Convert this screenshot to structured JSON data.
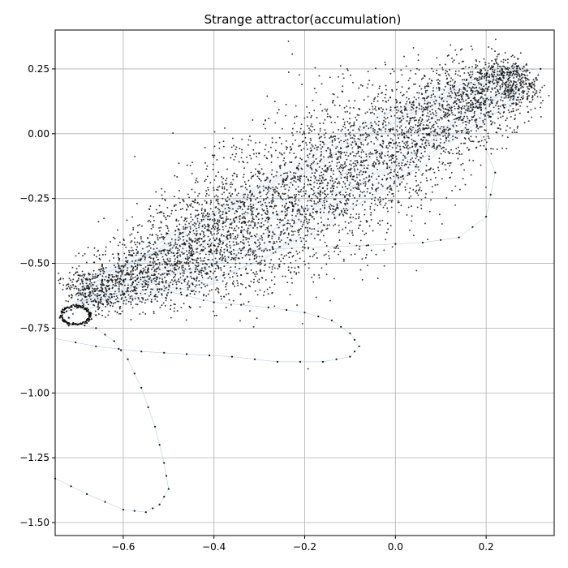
{
  "chart_data": {
    "type": "scatter",
    "title": "Strange attractor(accumulation)",
    "xlabel": "",
    "ylabel": "",
    "xlim": [
      -0.75,
      0.35
    ],
    "ylim": [
      -1.55,
      0.4
    ],
    "grid": true,
    "x_ticks": [
      -0.6,
      -0.4,
      -0.2,
      0.0,
      0.2
    ],
    "x_tick_labels": [
      "−0.6",
      "−0.4",
      "−0.2",
      "0.0",
      "0.2"
    ],
    "y_ticks": [
      0.25,
      0.0,
      -0.25,
      -0.5,
      -0.75,
      -1.0,
      -1.25,
      -1.5
    ],
    "y_tick_labels": [
      "0.25",
      "0.00",
      "−0.25",
      "−0.50",
      "−0.75",
      "−1.00",
      "−1.25",
      "−1.50"
    ],
    "colors": {
      "points": "#111111",
      "trajectory": "#a9c4de",
      "grid": "#b0b0b0",
      "axes": "#000000"
    },
    "series": [
      {
        "trajectory_points": [
          [
            -0.75,
            -1.33
          ],
          [
            -0.68,
            -1.39
          ],
          [
            -0.6,
            -1.45
          ],
          [
            -0.55,
            -1.46
          ],
          [
            -0.52,
            -1.43
          ],
          [
            -0.5,
            -1.37
          ],
          [
            -0.51,
            -1.27
          ],
          [
            -0.53,
            -1.13
          ],
          [
            -0.56,
            -0.98
          ],
          [
            -0.59,
            -0.87
          ],
          [
            -0.62,
            -0.8
          ],
          [
            -0.66,
            -0.75
          ],
          [
            -0.71,
            -0.73
          ],
          [
            -0.73,
            -0.69
          ],
          [
            -0.7,
            -0.67
          ],
          [
            -0.66,
            -0.7
          ],
          [
            -0.68,
            -0.73
          ],
          [
            -0.72,
            -0.74
          ],
          [
            -0.74,
            -0.71
          ],
          [
            -0.71,
            -0.66
          ],
          [
            -0.65,
            -0.64
          ],
          [
            -0.6,
            -0.62
          ],
          [
            -0.55,
            -0.58
          ],
          [
            -0.5,
            -0.53
          ],
          [
            -0.45,
            -0.47
          ],
          [
            -0.4,
            -0.43
          ],
          [
            -0.34,
            -0.38
          ],
          [
            -0.28,
            -0.33
          ],
          [
            -0.22,
            -0.27
          ],
          [
            -0.16,
            -0.21
          ],
          [
            -0.1,
            -0.14
          ],
          [
            -0.04,
            -0.07
          ],
          [
            0.02,
            0.0
          ],
          [
            0.08,
            0.06
          ],
          [
            0.14,
            0.13
          ],
          [
            0.2,
            0.19
          ],
          [
            0.26,
            0.24
          ],
          [
            0.32,
            0.25
          ],
          [
            0.3,
            0.18
          ],
          [
            0.24,
            0.1
          ],
          [
            0.18,
            0.03
          ],
          [
            0.22,
            -0.15
          ],
          [
            0.2,
            -0.32
          ],
          [
            0.14,
            -0.4
          ],
          [
            0.06,
            -0.42
          ],
          [
            -0.06,
            -0.43
          ],
          [
            -0.2,
            -0.44
          ],
          [
            -0.34,
            -0.45
          ],
          [
            -0.48,
            -0.46
          ],
          [
            -0.58,
            -0.47
          ],
          [
            -0.52,
            -0.6
          ],
          [
            -0.4,
            -0.65
          ],
          [
            -0.28,
            -0.67
          ],
          [
            -0.2,
            -0.69
          ],
          [
            -0.14,
            -0.72
          ],
          [
            -0.1,
            -0.77
          ],
          [
            -0.08,
            -0.82
          ],
          [
            -0.1,
            -0.86
          ],
          [
            -0.16,
            -0.88
          ],
          [
            -0.26,
            -0.88
          ],
          [
            -0.36,
            -0.86
          ],
          [
            -0.46,
            -0.85
          ],
          [
            -0.56,
            -0.84
          ],
          [
            -0.66,
            -0.82
          ],
          [
            -0.75,
            -0.79
          ]
        ],
        "cloud_density": {
          "x": [
            -0.7,
            -0.62,
            -0.55,
            -0.48,
            -0.42,
            -0.36,
            -0.3,
            -0.24,
            -0.18,
            -0.12,
            -0.06,
            0.0,
            0.06,
            0.12,
            0.18,
            0.24,
            0.28
          ],
          "y_center": [
            -0.62,
            -0.58,
            -0.53,
            -0.48,
            -0.43,
            -0.38,
            -0.33,
            -0.27,
            -0.21,
            -0.15,
            -0.09,
            -0.03,
            0.03,
            0.09,
            0.14,
            0.19,
            0.22
          ],
          "y_spread": [
            0.06,
            0.1,
            0.13,
            0.16,
            0.18,
            0.2,
            0.21,
            0.22,
            0.22,
            0.22,
            0.21,
            0.2,
            0.18,
            0.16,
            0.13,
            0.1,
            0.07
          ]
        }
      }
    ]
  }
}
